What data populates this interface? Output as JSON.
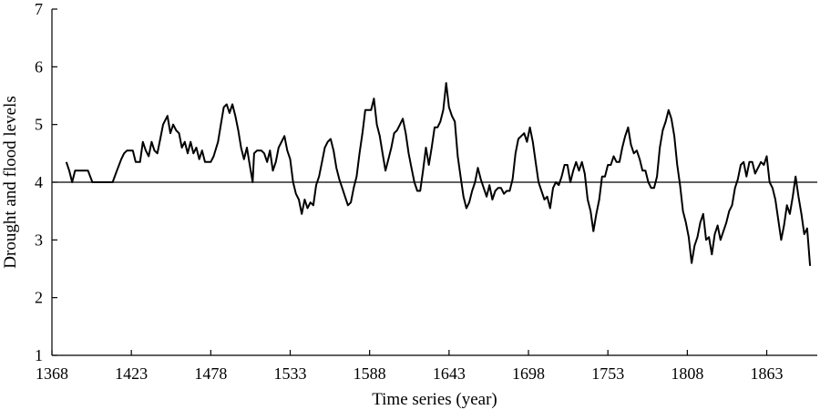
{
  "chart_data": {
    "type": "line",
    "xlabel": "Time series (year)",
    "ylabel": "Drought and flood levels",
    "xlim": [
      1368,
      1898
    ],
    "ylim": [
      1,
      7
    ],
    "x_ticks": [
      1368,
      1423,
      1478,
      1533,
      1588,
      1643,
      1698,
      1753,
      1808,
      1863
    ],
    "y_ticks": [
      1,
      2,
      3,
      4,
      5,
      6,
      7
    ],
    "reference_line": 4,
    "grid": false,
    "series": [
      {
        "color": "#000000",
        "points": [
          [
            1378,
            4.35
          ],
          [
            1380,
            4.2
          ],
          [
            1382,
            4.0
          ],
          [
            1384,
            4.2
          ],
          [
            1388,
            4.2
          ],
          [
            1393,
            4.2
          ],
          [
            1396,
            4.0
          ],
          [
            1400,
            4.0
          ],
          [
            1410,
            4.0
          ],
          [
            1413,
            4.2
          ],
          [
            1416,
            4.4
          ],
          [
            1418,
            4.5
          ],
          [
            1420,
            4.55
          ],
          [
            1424,
            4.55
          ],
          [
            1426,
            4.35
          ],
          [
            1429,
            4.35
          ],
          [
            1431,
            4.7
          ],
          [
            1433,
            4.55
          ],
          [
            1435,
            4.45
          ],
          [
            1437,
            4.7
          ],
          [
            1439,
            4.55
          ],
          [
            1441,
            4.5
          ],
          [
            1443,
            4.75
          ],
          [
            1445,
            5.0
          ],
          [
            1447,
            5.1
          ],
          [
            1448,
            5.15
          ],
          [
            1450,
            4.85
          ],
          [
            1452,
            5.0
          ],
          [
            1454,
            4.9
          ],
          [
            1456,
            4.85
          ],
          [
            1458,
            4.6
          ],
          [
            1460,
            4.7
          ],
          [
            1462,
            4.5
          ],
          [
            1464,
            4.7
          ],
          [
            1466,
            4.5
          ],
          [
            1468,
            4.6
          ],
          [
            1470,
            4.4
          ],
          [
            1472,
            4.55
          ],
          [
            1474,
            4.35
          ],
          [
            1478,
            4.35
          ],
          [
            1480,
            4.45
          ],
          [
            1483,
            4.7
          ],
          [
            1485,
            5.0
          ],
          [
            1487,
            5.3
          ],
          [
            1489,
            5.35
          ],
          [
            1491,
            5.2
          ],
          [
            1493,
            5.35
          ],
          [
            1495,
            5.15
          ],
          [
            1497,
            4.9
          ],
          [
            1499,
            4.6
          ],
          [
            1501,
            4.4
          ],
          [
            1503,
            4.6
          ],
          [
            1505,
            4.3
          ],
          [
            1507,
            4.0
          ],
          [
            1508,
            4.5
          ],
          [
            1510,
            4.55
          ],
          [
            1513,
            4.55
          ],
          [
            1515,
            4.5
          ],
          [
            1517,
            4.35
          ],
          [
            1519,
            4.55
          ],
          [
            1521,
            4.2
          ],
          [
            1523,
            4.35
          ],
          [
            1525,
            4.6
          ],
          [
            1527,
            4.7
          ],
          [
            1529,
            4.8
          ],
          [
            1531,
            4.55
          ],
          [
            1533,
            4.4
          ],
          [
            1535,
            4.0
          ],
          [
            1537,
            3.8
          ],
          [
            1539,
            3.7
          ],
          [
            1541,
            3.45
          ],
          [
            1543,
            3.7
          ],
          [
            1545,
            3.55
          ],
          [
            1547,
            3.65
          ],
          [
            1549,
            3.6
          ],
          [
            1551,
            3.95
          ],
          [
            1553,
            4.1
          ],
          [
            1555,
            4.35
          ],
          [
            1557,
            4.6
          ],
          [
            1559,
            4.7
          ],
          [
            1561,
            4.75
          ],
          [
            1563,
            4.55
          ],
          [
            1565,
            4.25
          ],
          [
            1567,
            4.05
          ],
          [
            1569,
            3.9
          ],
          [
            1571,
            3.75
          ],
          [
            1573,
            3.6
          ],
          [
            1575,
            3.65
          ],
          [
            1577,
            3.9
          ],
          [
            1579,
            4.1
          ],
          [
            1581,
            4.5
          ],
          [
            1583,
            4.85
          ],
          [
            1585,
            5.25
          ],
          [
            1587,
            5.25
          ],
          [
            1589,
            5.25
          ],
          [
            1591,
            5.45
          ],
          [
            1593,
            5.0
          ],
          [
            1595,
            4.8
          ],
          [
            1597,
            4.5
          ],
          [
            1599,
            4.2
          ],
          [
            1601,
            4.4
          ],
          [
            1603,
            4.6
          ],
          [
            1605,
            4.85
          ],
          [
            1607,
            4.9
          ],
          [
            1609,
            5.0
          ],
          [
            1611,
            5.1
          ],
          [
            1613,
            4.85
          ],
          [
            1615,
            4.5
          ],
          [
            1617,
            4.25
          ],
          [
            1619,
            4.0
          ],
          [
            1621,
            3.85
          ],
          [
            1623,
            3.85
          ],
          [
            1625,
            4.2
          ],
          [
            1627,
            4.6
          ],
          [
            1629,
            4.3
          ],
          [
            1631,
            4.6
          ],
          [
            1633,
            4.95
          ],
          [
            1635,
            4.95
          ],
          [
            1637,
            5.05
          ],
          [
            1639,
            5.25
          ],
          [
            1641,
            5.72
          ],
          [
            1643,
            5.3
          ],
          [
            1645,
            5.15
          ],
          [
            1647,
            5.05
          ],
          [
            1649,
            4.45
          ],
          [
            1651,
            4.1
          ],
          [
            1653,
            3.75
          ],
          [
            1655,
            3.55
          ],
          [
            1657,
            3.65
          ],
          [
            1659,
            3.85
          ],
          [
            1661,
            4.0
          ],
          [
            1663,
            4.25
          ],
          [
            1665,
            4.05
          ],
          [
            1667,
            3.9
          ],
          [
            1669,
            3.75
          ],
          [
            1671,
            3.95
          ],
          [
            1673,
            3.7
          ],
          [
            1675,
            3.85
          ],
          [
            1677,
            3.9
          ],
          [
            1679,
            3.9
          ],
          [
            1681,
            3.8
          ],
          [
            1683,
            3.85
          ],
          [
            1685,
            3.85
          ],
          [
            1687,
            4.05
          ],
          [
            1689,
            4.5
          ],
          [
            1691,
            4.75
          ],
          [
            1693,
            4.8
          ],
          [
            1695,
            4.85
          ],
          [
            1697,
            4.7
          ],
          [
            1699,
            4.95
          ],
          [
            1701,
            4.7
          ],
          [
            1703,
            4.35
          ],
          [
            1705,
            4.0
          ],
          [
            1707,
            3.85
          ],
          [
            1709,
            3.7
          ],
          [
            1711,
            3.75
          ],
          [
            1713,
            3.55
          ],
          [
            1715,
            3.9
          ],
          [
            1717,
            4.0
          ],
          [
            1719,
            3.95
          ],
          [
            1721,
            4.1
          ],
          [
            1723,
            4.3
          ],
          [
            1725,
            4.3
          ],
          [
            1727,
            4.0
          ],
          [
            1729,
            4.2
          ],
          [
            1731,
            4.35
          ],
          [
            1733,
            4.2
          ],
          [
            1735,
            4.35
          ],
          [
            1737,
            4.15
          ],
          [
            1739,
            3.7
          ],
          [
            1741,
            3.5
          ],
          [
            1743,
            3.15
          ],
          [
            1745,
            3.45
          ],
          [
            1747,
            3.7
          ],
          [
            1749,
            4.1
          ],
          [
            1751,
            4.1
          ],
          [
            1753,
            4.3
          ],
          [
            1755,
            4.3
          ],
          [
            1757,
            4.45
          ],
          [
            1759,
            4.35
          ],
          [
            1761,
            4.35
          ],
          [
            1763,
            4.6
          ],
          [
            1765,
            4.8
          ],
          [
            1767,
            4.95
          ],
          [
            1769,
            4.65
          ],
          [
            1771,
            4.5
          ],
          [
            1773,
            4.55
          ],
          [
            1775,
            4.4
          ],
          [
            1777,
            4.2
          ],
          [
            1779,
            4.2
          ],
          [
            1781,
            4.0
          ],
          [
            1783,
            3.9
          ],
          [
            1785,
            3.9
          ],
          [
            1787,
            4.1
          ],
          [
            1789,
            4.6
          ],
          [
            1791,
            4.9
          ],
          [
            1793,
            5.05
          ],
          [
            1795,
            5.25
          ],
          [
            1797,
            5.1
          ],
          [
            1799,
            4.8
          ],
          [
            1801,
            4.3
          ],
          [
            1803,
            3.95
          ],
          [
            1805,
            3.5
          ],
          [
            1807,
            3.3
          ],
          [
            1809,
            3.05
          ],
          [
            1811,
            2.6
          ],
          [
            1813,
            2.9
          ],
          [
            1815,
            3.05
          ],
          [
            1817,
            3.3
          ],
          [
            1819,
            3.45
          ],
          [
            1821,
            3.0
          ],
          [
            1823,
            3.05
          ],
          [
            1825,
            2.75
          ],
          [
            1827,
            3.1
          ],
          [
            1829,
            3.25
          ],
          [
            1831,
            3.0
          ],
          [
            1833,
            3.15
          ],
          [
            1835,
            3.3
          ],
          [
            1837,
            3.5
          ],
          [
            1839,
            3.6
          ],
          [
            1841,
            3.9
          ],
          [
            1843,
            4.05
          ],
          [
            1845,
            4.3
          ],
          [
            1847,
            4.35
          ],
          [
            1849,
            4.1
          ],
          [
            1851,
            4.35
          ],
          [
            1853,
            4.35
          ],
          [
            1855,
            4.15
          ],
          [
            1857,
            4.25
          ],
          [
            1859,
            4.35
          ],
          [
            1861,
            4.3
          ],
          [
            1863,
            4.45
          ],
          [
            1865,
            4.0
          ],
          [
            1867,
            3.9
          ],
          [
            1869,
            3.7
          ],
          [
            1871,
            3.35
          ],
          [
            1873,
            3.0
          ],
          [
            1875,
            3.25
          ],
          [
            1877,
            3.6
          ],
          [
            1879,
            3.45
          ],
          [
            1881,
            3.75
          ],
          [
            1883,
            4.1
          ],
          [
            1885,
            3.75
          ],
          [
            1887,
            3.45
          ],
          [
            1889,
            3.1
          ],
          [
            1891,
            3.2
          ],
          [
            1893,
            2.55
          ]
        ]
      }
    ]
  }
}
